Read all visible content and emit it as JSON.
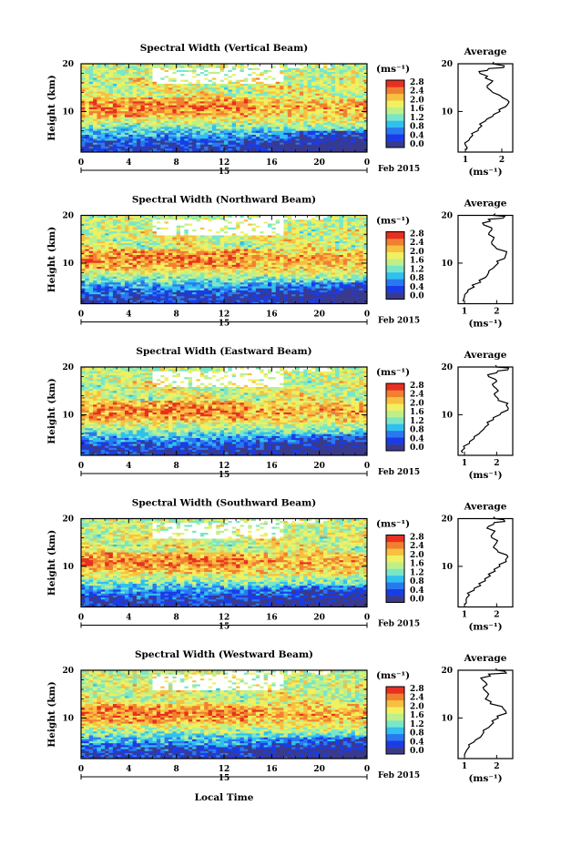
{
  "chart_data": {
    "type": "heatmap",
    "date_label": "15",
    "date_suffix": "Feb 2015",
    "xlabel": "Local Time",
    "ylabel": "Height (km)",
    "unit_label": "(ms⁻¹)",
    "x_ticks": [
      "0",
      "4",
      "8",
      "12",
      "16",
      "20",
      "0"
    ],
    "xlim": [
      0,
      24
    ],
    "y_ticks": [
      "20",
      "10"
    ],
    "ylim": [
      1.5,
      20
    ],
    "colorbar": {
      "ticks": [
        "2.8",
        "2.4",
        "2.0",
        "1.6",
        "1.2",
        "0.8",
        "0.4",
        "0.0"
      ],
      "range": [
        0.0,
        2.8
      ],
      "colors": [
        "#3a3a8c",
        "#1a3ce6",
        "#2a78f0",
        "#30c0f0",
        "#7ae6c8",
        "#bef08a",
        "#f0f060",
        "#f8c040",
        "#f08030",
        "#e83020"
      ]
    },
    "panels": [
      {
        "title": "Spectral Width (Vertical Beam)",
        "avg_title": "Average",
        "avg_xlabel": "(ms⁻¹)",
        "avg_xticks": [
          "1",
          "2"
        ],
        "avg_xlim": [
          0.8,
          2.3
        ],
        "avg_profile": [
          [
            1.02,
            2
          ],
          [
            1.0,
            3
          ],
          [
            1.1,
            4
          ],
          [
            1.2,
            5
          ],
          [
            1.35,
            6
          ],
          [
            1.45,
            7
          ],
          [
            1.55,
            8
          ],
          [
            1.75,
            9
          ],
          [
            1.95,
            10
          ],
          [
            2.1,
            11
          ],
          [
            2.2,
            12
          ],
          [
            2.0,
            13
          ],
          [
            1.75,
            14
          ],
          [
            1.6,
            15
          ],
          [
            1.7,
            16
          ],
          [
            1.55,
            17
          ],
          [
            1.4,
            18
          ],
          [
            1.6,
            18.6
          ],
          [
            2.05,
            19.2
          ],
          [
            1.75,
            20
          ]
        ]
      },
      {
        "title": "Spectral Width (Northward Beam)",
        "avg_title": "Average",
        "avg_xlabel": "(ms⁻¹)",
        "avg_xticks": [
          "1",
          "2"
        ],
        "avg_xlim": [
          0.8,
          2.5
        ],
        "avg_profile": [
          [
            0.95,
            2
          ],
          [
            1.0,
            3
          ],
          [
            1.1,
            4
          ],
          [
            1.3,
            5
          ],
          [
            1.5,
            6
          ],
          [
            1.65,
            7
          ],
          [
            1.75,
            8
          ],
          [
            1.9,
            9
          ],
          [
            2.05,
            10
          ],
          [
            2.25,
            11
          ],
          [
            2.3,
            12
          ],
          [
            2.0,
            13
          ],
          [
            1.85,
            14
          ],
          [
            1.9,
            15
          ],
          [
            1.75,
            16
          ],
          [
            1.85,
            17
          ],
          [
            1.6,
            18
          ],
          [
            1.8,
            18.8
          ],
          [
            2.2,
            19.4
          ],
          [
            1.9,
            20
          ]
        ]
      },
      {
        "title": "Spectral Width (Eastward Beam)",
        "avg_title": "Average",
        "avg_xlabel": "(ms⁻¹)",
        "avg_xticks": [
          "1",
          "2"
        ],
        "avg_xlim": [
          0.8,
          2.5
        ],
        "avg_profile": [
          [
            0.95,
            2
          ],
          [
            1.0,
            3
          ],
          [
            1.15,
            4
          ],
          [
            1.3,
            5
          ],
          [
            1.45,
            6
          ],
          [
            1.6,
            7
          ],
          [
            1.75,
            8
          ],
          [
            1.9,
            9
          ],
          [
            2.1,
            10
          ],
          [
            2.35,
            11
          ],
          [
            2.3,
            12
          ],
          [
            2.05,
            13
          ],
          [
            1.95,
            14
          ],
          [
            2.05,
            15
          ],
          [
            1.9,
            16
          ],
          [
            2.0,
            17
          ],
          [
            1.75,
            18
          ],
          [
            2.0,
            18.8
          ],
          [
            2.35,
            19.4
          ],
          [
            2.0,
            20
          ]
        ]
      },
      {
        "title": "Spectral Width (Southward Beam)",
        "avg_title": "Average",
        "avg_xlabel": "(ms⁻¹)",
        "avg_xticks": [
          "1",
          "2"
        ],
        "avg_xlim": [
          0.8,
          2.5
        ],
        "avg_profile": [
          [
            1.0,
            2
          ],
          [
            1.05,
            3
          ],
          [
            1.15,
            4
          ],
          [
            1.3,
            5
          ],
          [
            1.5,
            6
          ],
          [
            1.65,
            7
          ],
          [
            1.8,
            8
          ],
          [
            1.95,
            9
          ],
          [
            2.1,
            10
          ],
          [
            2.3,
            11
          ],
          [
            2.35,
            12
          ],
          [
            2.05,
            13
          ],
          [
            1.9,
            14
          ],
          [
            2.0,
            15
          ],
          [
            1.85,
            16
          ],
          [
            1.9,
            17
          ],
          [
            1.7,
            18
          ],
          [
            1.9,
            18.8
          ],
          [
            2.25,
            19.4
          ],
          [
            1.95,
            20
          ]
        ]
      },
      {
        "title": "Spectral Width (Westward Beam)",
        "avg_title": "Average",
        "avg_xlabel": "(ms⁻¹)",
        "avg_xticks": [
          "1",
          "2"
        ],
        "avg_xlim": [
          0.8,
          2.5
        ],
        "avg_profile": [
          [
            1.0,
            2
          ],
          [
            1.05,
            3
          ],
          [
            1.15,
            4
          ],
          [
            1.3,
            5
          ],
          [
            1.5,
            6
          ],
          [
            1.6,
            7
          ],
          [
            1.75,
            8
          ],
          [
            1.9,
            9
          ],
          [
            2.05,
            10
          ],
          [
            2.3,
            11
          ],
          [
            2.2,
            12
          ],
          [
            1.8,
            13
          ],
          [
            1.65,
            14
          ],
          [
            1.75,
            15
          ],
          [
            1.6,
            16
          ],
          [
            1.7,
            17
          ],
          [
            1.55,
            18
          ],
          [
            1.8,
            18.8
          ],
          [
            2.3,
            19.4
          ],
          [
            2.0,
            20
          ]
        ]
      }
    ]
  }
}
